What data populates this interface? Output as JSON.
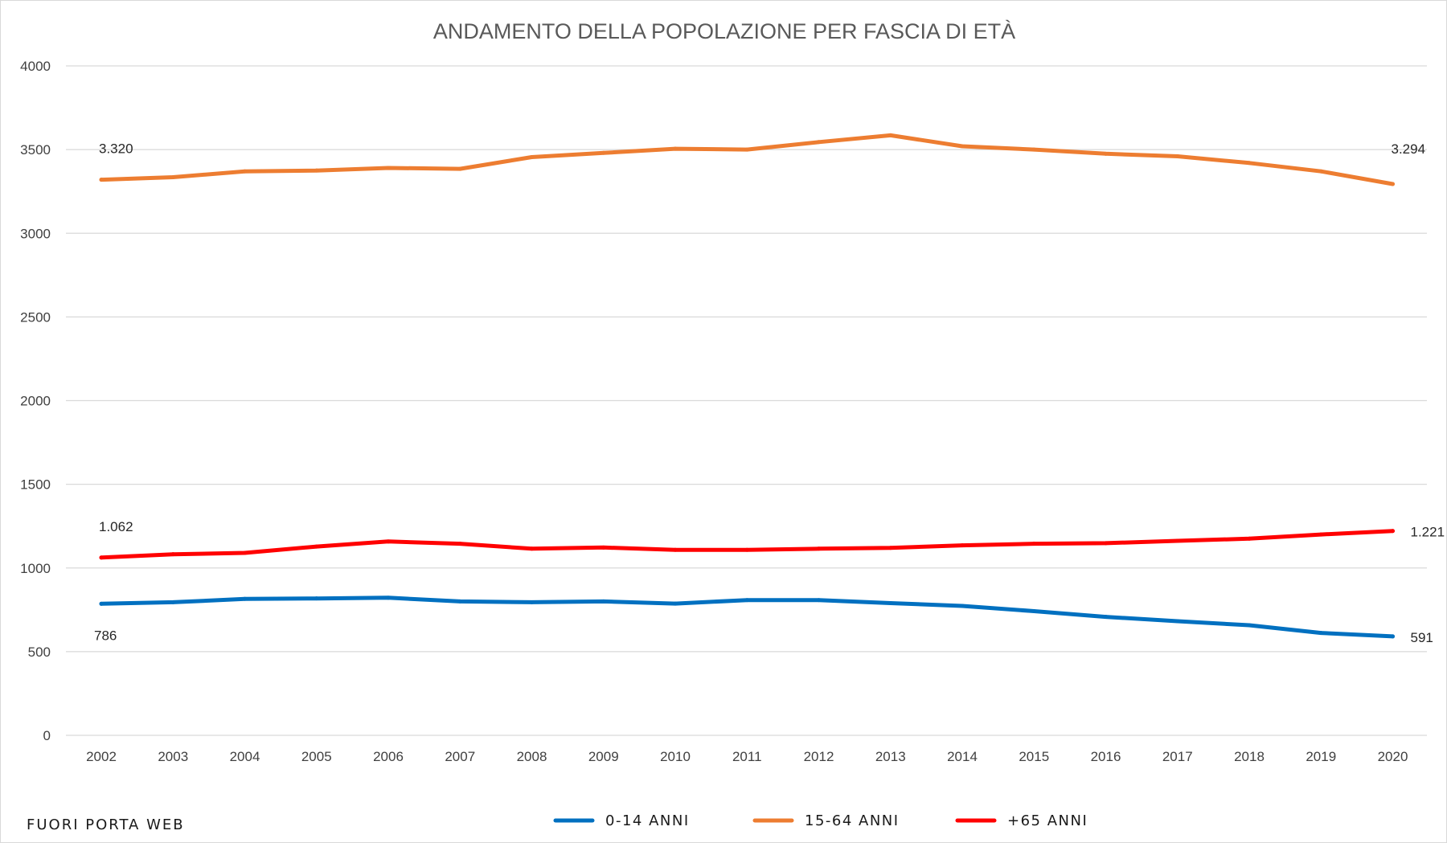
{
  "chart_data": {
    "type": "line",
    "title": "ANDAMENTO DELLA POPOLAZIONE PER FASCIA DI ETÀ",
    "xlabel": "",
    "ylabel": "",
    "ylim": [
      0,
      4000
    ],
    "yticks": [
      "0",
      "500",
      "1000",
      "1500",
      "2000",
      "2500",
      "3000",
      "3500",
      "4000"
    ],
    "ytick_values": [
      0,
      500,
      1000,
      1500,
      2000,
      2500,
      3000,
      3500,
      4000
    ],
    "categories": [
      "2002",
      "2003",
      "2004",
      "2005",
      "2006",
      "2007",
      "2008",
      "2009",
      "2010",
      "2011",
      "2012",
      "2013",
      "2014",
      "2015",
      "2016",
      "2017",
      "2018",
      "2019",
      "2020"
    ],
    "grid": true,
    "legend_position": "bottom",
    "series": [
      {
        "name": "0-14 ANNI",
        "color": "#0070C0",
        "values": [
          786,
          795,
          815,
          818,
          822,
          800,
          795,
          800,
          787,
          808,
          808,
          790,
          773,
          742,
          708,
          682,
          658,
          612,
          591
        ],
        "first_label": "786",
        "last_label": "591"
      },
      {
        "name": "15-64 ANNI",
        "color": "#ED7D31",
        "values": [
          3320,
          3335,
          3370,
          3375,
          3390,
          3385,
          3455,
          3480,
          3505,
          3500,
          3545,
          3585,
          3520,
          3500,
          3475,
          3460,
          3420,
          3370,
          3294
        ],
        "first_label": "3.320",
        "last_label": "3.294"
      },
      {
        "name": "+65 ANNI",
        "color": "#FF0000",
        "values": [
          1062,
          1082,
          1090,
          1128,
          1158,
          1145,
          1115,
          1122,
          1108,
          1108,
          1115,
          1120,
          1135,
          1145,
          1148,
          1162,
          1175,
          1200,
          1221
        ],
        "first_label": "1.062",
        "last_label": "1.221"
      }
    ]
  },
  "footer": {
    "brand": "FUORI PORTA WEB"
  }
}
